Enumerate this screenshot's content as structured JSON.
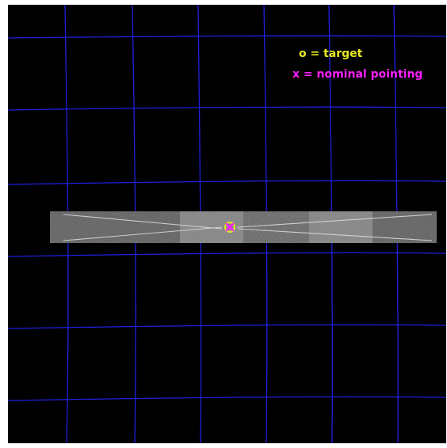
{
  "legend": {
    "target_label": "o = target",
    "pointing_label": "x = nominal pointing"
  },
  "colors": {
    "background": "#000000",
    "grid": "#2020e0",
    "target": "#e8e820",
    "pointing": "#ff20ff",
    "slit_outer": "#5a5a5a",
    "slit_inner": "#858585",
    "trace_line": "#d8d8d8"
  },
  "markers": {
    "target_icon": "circle-icon",
    "pointing_icon": "cross-icon"
  }
}
